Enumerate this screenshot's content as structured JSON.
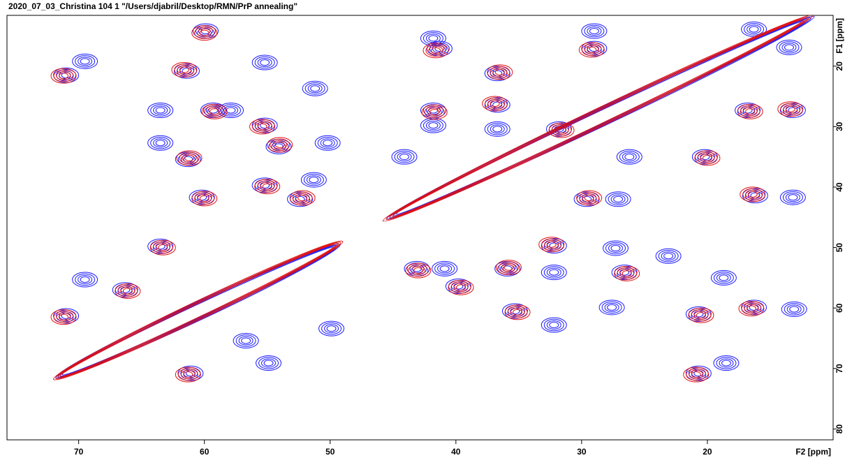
{
  "chart_data": {
    "type": "contour",
    "title": "2020_07_03_Christina  104  1  \"/Users/djabril/Desktop/RMN/PrP annealing\"",
    "x_label": "F2 [ppm]",
    "y_label": "F1 [ppm]",
    "xlim": [
      75.7,
      10
    ],
    "ylim": [
      11.6,
      81.8
    ],
    "xticks": [
      70,
      60,
      50,
      40,
      30,
      20
    ],
    "yticks": [
      20,
      30,
      40,
      50,
      60,
      70,
      80
    ],
    "series": [
      {
        "color": "#1a1aff",
        "diagonal": [
          [
            71.8,
            71.5
          ],
          [
            49.2,
            49.5
          ],
          [
            45.5,
            45.2
          ],
          [
            11.5,
            11.8
          ]
        ],
        "peaks": [
          [
            71.0,
            21.5
          ],
          [
            69.5,
            19.2
          ],
          [
            61.4,
            20.8
          ],
          [
            55.2,
            19.4
          ],
          [
            51.2,
            23.7
          ],
          [
            59.9,
            14.2
          ],
          [
            63.5,
            27.3
          ],
          [
            59.3,
            27.3
          ],
          [
            57.9,
            27.3
          ],
          [
            63.5,
            32.7
          ],
          [
            61.3,
            35.4
          ],
          [
            54.1,
            33.3
          ],
          [
            55.2,
            29.8
          ],
          [
            50.2,
            32.7
          ],
          [
            55.2,
            39.7
          ],
          [
            60.2,
            41.7
          ],
          [
            52.4,
            42.0
          ],
          [
            51.3,
            38.8
          ],
          [
            41.8,
            15.4
          ],
          [
            41.3,
            17.1
          ],
          [
            41.8,
            27.3
          ],
          [
            41.8,
            29.8
          ],
          [
            44.1,
            35.0
          ],
          [
            36.7,
            21.2
          ],
          [
            36.7,
            26.4
          ],
          [
            29.0,
            14.2
          ],
          [
            29.0,
            17.1
          ],
          [
            36.7,
            30.4
          ],
          [
            31.8,
            30.4
          ],
          [
            20.2,
            35.0
          ],
          [
            26.2,
            35.0
          ],
          [
            29.6,
            42.0
          ],
          [
            27.1,
            42.0
          ],
          [
            16.8,
            27.3
          ],
          [
            13.2,
            27.3
          ],
          [
            16.2,
            41.4
          ],
          [
            13.2,
            41.7
          ],
          [
            13.5,
            16.9
          ],
          [
            16.3,
            13.9
          ],
          [
            27.3,
            50.1
          ],
          [
            23.1,
            51.4
          ],
          [
            32.2,
            49.7
          ],
          [
            43.1,
            53.5
          ],
          [
            40.9,
            53.5
          ],
          [
            35.9,
            53.5
          ],
          [
            32.2,
            54.1
          ],
          [
            26.6,
            54.1
          ],
          [
            39.8,
            56.4
          ],
          [
            35.3,
            60.5
          ],
          [
            27.6,
            59.9
          ],
          [
            20.7,
            61.0
          ],
          [
            16.3,
            59.9
          ],
          [
            18.7,
            55.0
          ],
          [
            13.1,
            60.2
          ],
          [
            32.2,
            62.8
          ],
          [
            69.5,
            55.3
          ],
          [
            66.3,
            57.0
          ],
          [
            71.0,
            61.3
          ],
          [
            56.7,
            65.4
          ],
          [
            54.9,
            69.1
          ],
          [
            61.1,
            70.8
          ],
          [
            20.7,
            70.8
          ],
          [
            18.5,
            69.1
          ],
          [
            49.9,
            63.4
          ],
          [
            63.5,
            49.8
          ]
        ]
      },
      {
        "color": "#e01010",
        "diagonal": [
          [
            72.0,
            71.8
          ],
          [
            49.0,
            49.0
          ],
          [
            45.8,
            45.6
          ],
          [
            11.6,
            11.6
          ]
        ],
        "peaks": [
          [
            71.2,
            21.6
          ],
          [
            61.6,
            20.6
          ],
          [
            60.0,
            14.5
          ],
          [
            59.2,
            27.5
          ],
          [
            61.2,
            35.2
          ],
          [
            54.0,
            33.0
          ],
          [
            55.4,
            30.0
          ],
          [
            55.0,
            39.9
          ],
          [
            60.0,
            41.9
          ],
          [
            52.2,
            41.8
          ],
          [
            41.6,
            17.4
          ],
          [
            41.7,
            27.6
          ],
          [
            36.5,
            21.0
          ],
          [
            36.9,
            26.2
          ],
          [
            29.2,
            17.3
          ],
          [
            31.6,
            30.6
          ],
          [
            20.0,
            35.2
          ],
          [
            29.4,
            41.8
          ],
          [
            16.6,
            27.5
          ],
          [
            13.4,
            27.1
          ],
          [
            16.4,
            41.2
          ],
          [
            32.4,
            49.5
          ],
          [
            43.0,
            53.8
          ],
          [
            35.8,
            53.3
          ],
          [
            26.4,
            54.3
          ],
          [
            39.6,
            56.6
          ],
          [
            35.1,
            60.7
          ],
          [
            20.5,
            61.2
          ],
          [
            16.5,
            60.1
          ],
          [
            66.1,
            57.2
          ],
          [
            71.2,
            61.5
          ],
          [
            61.3,
            71.0
          ],
          [
            20.9,
            71.0
          ],
          [
            63.3,
            50.0
          ]
        ]
      }
    ]
  }
}
